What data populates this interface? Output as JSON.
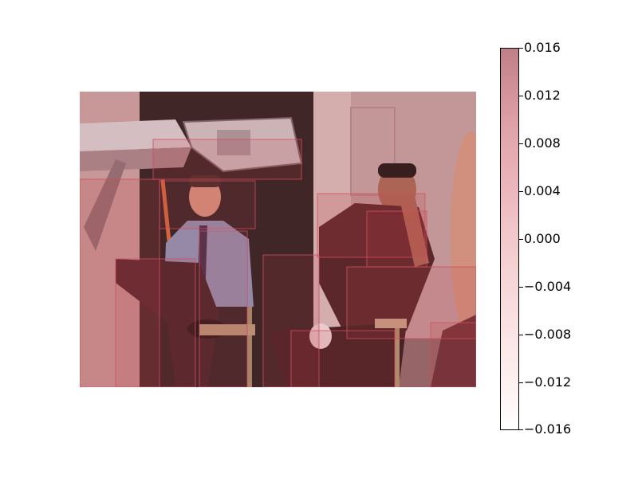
{
  "figure": {
    "photo_description_alt": "Heatmap overlay on a party photo",
    "colorbar": {
      "ticks": [
        "0.016",
        "0.012",
        "0.008",
        "0.004",
        "0.000",
        "−0.004",
        "−0.008",
        "−0.012",
        "−0.016"
      ],
      "color_low": "#ffffff",
      "color_high": "#bf7f87"
    },
    "overlay_color": "#c0404a"
  }
}
